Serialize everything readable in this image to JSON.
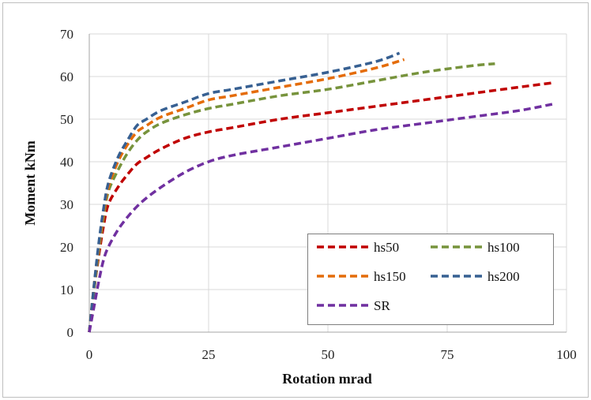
{
  "chart_data": {
    "type": "line",
    "title": "",
    "xlabel": "Rotation mrad",
    "ylabel": "Moment kNm",
    "xlim": [
      0,
      100
    ],
    "ylim": [
      0,
      70
    ],
    "xticks": [
      "0",
      "25",
      "50",
      "75",
      "100"
    ],
    "yticks": [
      "0",
      "10",
      "20",
      "30",
      "40",
      "50",
      "60",
      "70"
    ],
    "grid": true,
    "legend_position": "bottom-right",
    "series": [
      {
        "name": "hs50",
        "color": "#C00000",
        "x": [
          0,
          1,
          2,
          3,
          4,
          6,
          8,
          10,
          12,
          15,
          20,
          25,
          30,
          40,
          50,
          60,
          70,
          80,
          90,
          97
        ],
        "y": [
          0,
          10,
          18,
          25,
          30,
          34,
          37,
          39.5,
          41,
          43,
          45.5,
          47,
          48,
          50,
          51.5,
          53,
          54.5,
          56,
          57.5,
          58.5
        ]
      },
      {
        "name": "hs100",
        "color": "#77933C",
        "x": [
          0,
          1,
          2,
          3,
          4,
          6,
          8,
          10,
          12,
          15,
          20,
          25,
          30,
          40,
          50,
          60,
          70,
          80,
          85
        ],
        "y": [
          0,
          10,
          19,
          27,
          33,
          38,
          42,
          45,
          47,
          49,
          51,
          52.5,
          53.5,
          55.5,
          57,
          59,
          61,
          62.5,
          63
        ]
      },
      {
        "name": "hs150",
        "color": "#E46C0A",
        "x": [
          0,
          1,
          2,
          3,
          4,
          6,
          8,
          10,
          12,
          15,
          20,
          25,
          30,
          40,
          50,
          60,
          66
        ],
        "y": [
          0,
          11,
          20,
          28,
          34,
          40,
          44,
          47,
          48.5,
          50.5,
          52.5,
          54.5,
          55.5,
          57.5,
          59.5,
          62,
          64
        ]
      },
      {
        "name": "hs200",
        "color": "#376092",
        "x": [
          0,
          1,
          2,
          3,
          4,
          6,
          8,
          10,
          12,
          15,
          20,
          25,
          30,
          40,
          50,
          60,
          65
        ],
        "y": [
          0,
          11,
          21,
          29,
          35,
          41,
          45,
          48.5,
          50,
          52,
          54,
          56,
          57,
          59,
          61,
          63.5,
          65.5
        ]
      },
      {
        "name": "SR",
        "color": "#7030A0",
        "x": [
          0,
          1,
          2,
          3,
          4,
          6,
          8,
          10,
          12,
          15,
          20,
          25,
          30,
          40,
          50,
          60,
          70,
          80,
          90,
          97
        ],
        "y": [
          0,
          6,
          12,
          17,
          20,
          24,
          27,
          29.5,
          31.5,
          34,
          37.5,
          40,
          41.5,
          43.5,
          45.5,
          47.5,
          49,
          50.5,
          52,
          53.5
        ]
      }
    ]
  }
}
